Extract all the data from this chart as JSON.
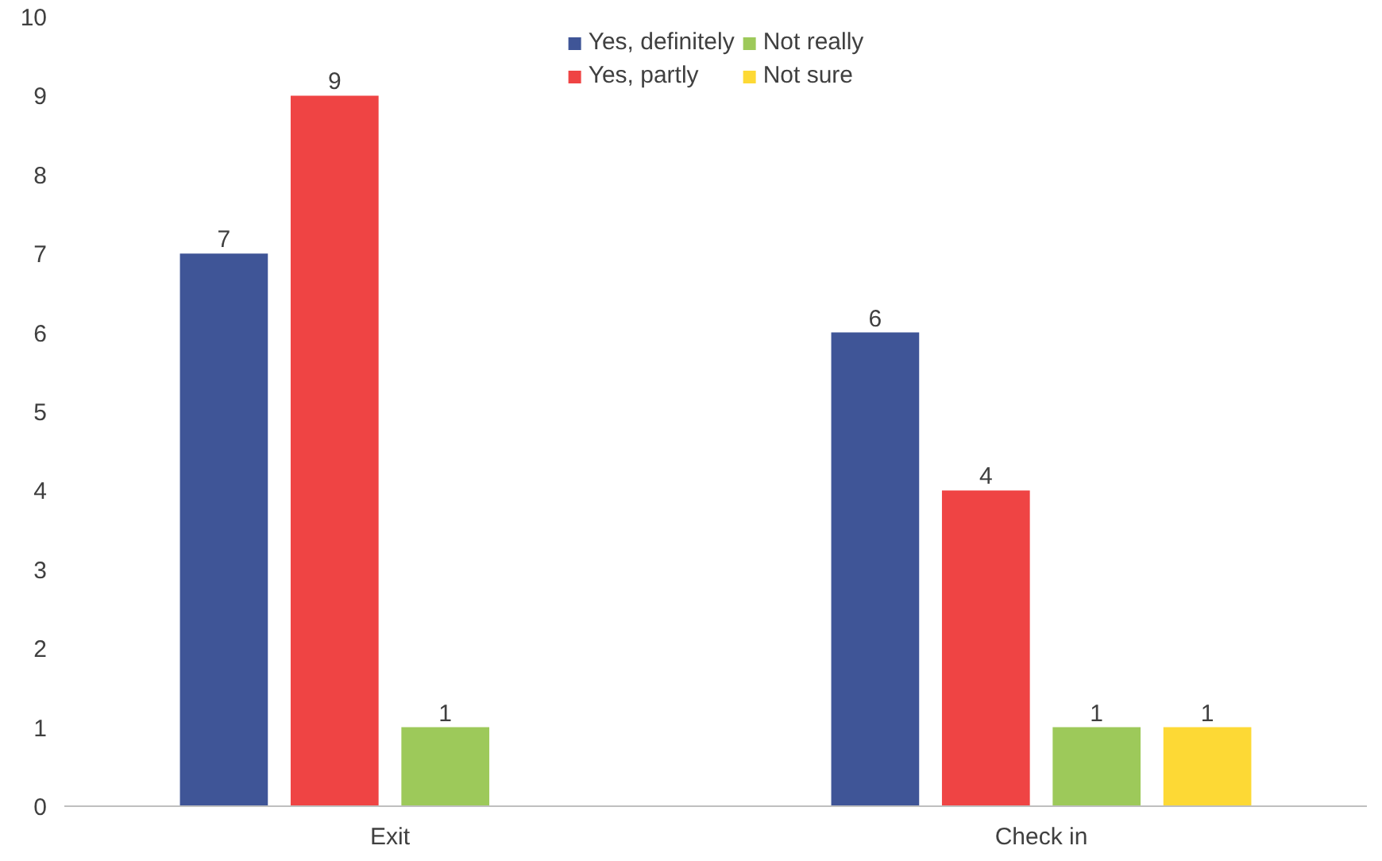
{
  "chart_data": {
    "type": "bar",
    "categories": [
      "Exit",
      "Check in"
    ],
    "series": [
      {
        "name": "Yes, definitely",
        "color": "#3f5597",
        "values": [
          7,
          6
        ]
      },
      {
        "name": "Yes, partly",
        "color": "#ef4444",
        "values": [
          9,
          4
        ]
      },
      {
        "name": "Not really",
        "color": "#9dc95a",
        "values": [
          1,
          1
        ]
      },
      {
        "name": "Not sure",
        "color": "#fdd935",
        "values": [
          null,
          1
        ]
      }
    ],
    "ylim": [
      0,
      10
    ],
    "yticks": [
      0,
      1,
      2,
      3,
      4,
      5,
      6,
      7,
      8,
      9,
      10
    ],
    "grid": false,
    "legend": "top",
    "data_labels": true
  }
}
